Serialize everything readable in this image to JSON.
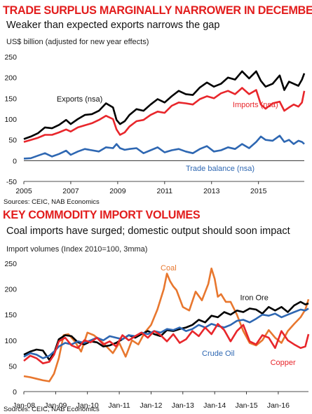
{
  "chart_data": [
    {
      "type": "line",
      "title": "TRADE SURPLUS MARGINALLY NARROWER IN DECEMBER",
      "subtitle": "Weaker than expected exports narrows the gap",
      "ylabel": "US$ billion (adjusted for new year effects)",
      "source": "Sources: CEIC, NAB Economics",
      "xlim": [
        2005.0,
        2016.95
      ],
      "ylim": [
        -50,
        250
      ],
      "x_ticks": [
        2005,
        2007,
        2009,
        2011,
        2013,
        2015
      ],
      "y_ticks": [
        -50,
        0,
        50,
        100,
        150,
        200,
        250
      ],
      "grid": false,
      "legend": "inline labels",
      "annotations": [
        "Exports (nsa)",
        "Imports (nsa)",
        "Trade balance (nsa)"
      ],
      "series": [
        {
          "name": "Exports (nsa)",
          "color": "#000000",
          "x": [
            2005.0,
            2005.3,
            2005.6,
            2005.9,
            2006.2,
            2006.5,
            2006.8,
            2007.0,
            2007.3,
            2007.6,
            2007.9,
            2008.2,
            2008.5,
            2008.8,
            2008.95,
            2009.1,
            2009.3,
            2009.5,
            2009.8,
            2010.1,
            2010.4,
            2010.7,
            2011.0,
            2011.3,
            2011.6,
            2011.9,
            2012.2,
            2012.5,
            2012.8,
            2013.1,
            2013.4,
            2013.7,
            2014.0,
            2014.3,
            2014.6,
            2014.9,
            2015.1,
            2015.3,
            2015.6,
            2015.9,
            2016.1,
            2016.3,
            2016.5,
            2016.7,
            2016.85,
            2016.95
          ],
          "values": [
            52,
            58,
            66,
            80,
            78,
            86,
            98,
            88,
            100,
            110,
            112,
            120,
            138,
            128,
            98,
            88,
            95,
            110,
            124,
            120,
            135,
            148,
            140,
            155,
            168,
            160,
            158,
            176,
            188,
            178,
            185,
            200,
            195,
            215,
            198,
            215,
            192,
            178,
            185,
            205,
            170,
            190,
            185,
            180,
            195,
            210
          ]
        },
        {
          "name": "Imports (nsa)",
          "color": "#e8262b",
          "x": [
            2005.0,
            2005.3,
            2005.6,
            2005.9,
            2006.2,
            2006.5,
            2006.8,
            2007.0,
            2007.3,
            2007.6,
            2007.9,
            2008.2,
            2008.5,
            2008.8,
            2008.95,
            2009.1,
            2009.3,
            2009.5,
            2009.8,
            2010.1,
            2010.4,
            2010.7,
            2011.0,
            2011.3,
            2011.6,
            2011.9,
            2012.2,
            2012.5,
            2012.8,
            2013.1,
            2013.4,
            2013.7,
            2014.0,
            2014.3,
            2014.6,
            2014.9,
            2015.1,
            2015.3,
            2015.6,
            2015.9,
            2016.1,
            2016.3,
            2016.5,
            2016.7,
            2016.85,
            2016.95
          ],
          "values": [
            45,
            50,
            55,
            62,
            62,
            68,
            75,
            70,
            80,
            85,
            90,
            98,
            108,
            100,
            75,
            62,
            68,
            82,
            95,
            98,
            110,
            118,
            115,
            132,
            140,
            138,
            135,
            148,
            155,
            150,
            162,
            168,
            160,
            175,
            160,
            170,
            135,
            125,
            138,
            142,
            120,
            128,
            135,
            130,
            140,
            168
          ]
        },
        {
          "name": "Trade balance (nsa)",
          "color": "#2e67b2",
          "x": [
            2005.0,
            2005.3,
            2005.6,
            2005.9,
            2006.2,
            2006.5,
            2006.8,
            2007.0,
            2007.3,
            2007.6,
            2007.9,
            2008.2,
            2008.5,
            2008.8,
            2008.95,
            2009.1,
            2009.3,
            2009.5,
            2009.8,
            2010.1,
            2010.4,
            2010.7,
            2011.0,
            2011.3,
            2011.6,
            2011.9,
            2012.2,
            2012.5,
            2012.8,
            2013.1,
            2013.4,
            2013.7,
            2014.0,
            2014.3,
            2014.6,
            2014.9,
            2015.1,
            2015.3,
            2015.6,
            2015.9,
            2016.1,
            2016.3,
            2016.5,
            2016.7,
            2016.85,
            2016.95
          ],
          "values": [
            5,
            6,
            12,
            18,
            10,
            16,
            24,
            14,
            22,
            28,
            25,
            22,
            32,
            30,
            40,
            30,
            26,
            28,
            30,
            18,
            25,
            32,
            20,
            25,
            28,
            22,
            18,
            28,
            35,
            22,
            25,
            32,
            28,
            40,
            30,
            45,
            58,
            50,
            48,
            60,
            45,
            50,
            40,
            48,
            45,
            40
          ]
        }
      ]
    },
    {
      "type": "line",
      "title": "KEY COMMODITY IMPORT VOLUMES",
      "subtitle": "Coal imports have surged; domestic output should soon impact",
      "ylabel": "Import volumes (Index 2010=100, 3mma)",
      "source": "Sources: CEIC, NAB Economics",
      "xlim": [
        2008.0,
        2016.95
      ],
      "ylim": [
        0,
        250
      ],
      "x_ticks": [
        2008,
        2009,
        2010,
        2011,
        2012,
        2013,
        2014,
        2015,
        2016
      ],
      "x_tick_labels": [
        "Jan-08",
        "Jan-09",
        "Jan-10",
        "Jan-11",
        "Jan-12",
        "Jan-13",
        "Jan-14",
        "Jan-15",
        "Jan-16"
      ],
      "y_ticks": [
        0,
        50,
        100,
        150,
        200,
        250
      ],
      "grid": false,
      "legend": "inline labels",
      "annotations": [
        "Coal",
        "Iron Ore",
        "Crude Oil",
        "Copper"
      ],
      "series": [
        {
          "name": "Coal",
          "color": "#e8772e",
          "x": [
            2008.0,
            2008.2,
            2008.4,
            2008.6,
            2008.8,
            2008.95,
            2009.1,
            2009.25,
            2009.4,
            2009.6,
            2009.8,
            2010.0,
            2010.2,
            2010.4,
            2010.6,
            2010.8,
            2011.0,
            2011.2,
            2011.4,
            2011.6,
            2011.8,
            2012.0,
            2012.2,
            2012.4,
            2012.5,
            2012.6,
            2012.7,
            2012.8,
            2013.0,
            2013.2,
            2013.4,
            2013.6,
            2013.8,
            2013.9,
            2014.0,
            2014.1,
            2014.2,
            2014.35,
            2014.5,
            2014.7,
            2014.9,
            2015.1,
            2015.3,
            2015.5,
            2015.7,
            2015.9,
            2016.1,
            2016.3,
            2016.5,
            2016.7,
            2016.85,
            2016.95
          ],
          "values": [
            30,
            28,
            25,
            22,
            20,
            35,
            65,
            110,
            112,
            98,
            78,
            115,
            110,
            100,
            88,
            75,
            95,
            68,
            100,
            92,
            115,
            130,
            160,
            200,
            230,
            215,
            205,
            198,
            165,
            158,
            195,
            178,
            210,
            240,
            220,
            185,
            190,
            175,
            175,
            150,
            118,
            95,
            90,
            100,
            120,
            105,
            95,
            118,
            132,
            145,
            160,
            180
          ]
        },
        {
          "name": "Iron Ore",
          "color": "#000000",
          "x": [
            2008.0,
            2008.2,
            2008.4,
            2008.6,
            2008.8,
            2008.95,
            2009.1,
            2009.3,
            2009.5,
            2009.7,
            2009.9,
            2010.1,
            2010.3,
            2010.5,
            2010.7,
            2010.9,
            2011.1,
            2011.3,
            2011.5,
            2011.7,
            2011.9,
            2012.1,
            2012.3,
            2012.5,
            2012.7,
            2012.9,
            2013.1,
            2013.3,
            2013.5,
            2013.7,
            2013.9,
            2014.1,
            2014.3,
            2014.5,
            2014.7,
            2014.9,
            2015.1,
            2015.3,
            2015.5,
            2015.7,
            2015.9,
            2016.1,
            2016.3,
            2016.5,
            2016.7,
            2016.85,
            2016.95
          ],
          "values": [
            72,
            78,
            82,
            80,
            62,
            75,
            102,
            110,
            108,
            96,
            92,
            98,
            96,
            88,
            90,
            95,
            102,
            110,
            105,
            112,
            118,
            112,
            108,
            120,
            118,
            122,
            125,
            130,
            140,
            135,
            148,
            145,
            155,
            150,
            158,
            155,
            162,
            160,
            152,
            165,
            158,
            165,
            155,
            168,
            175,
            170,
            172
          ]
        },
        {
          "name": "Crude Oil",
          "color": "#2e67b2",
          "x": [
            2008.0,
            2008.2,
            2008.4,
            2008.6,
            2008.8,
            2008.95,
            2009.1,
            2009.3,
            2009.5,
            2009.7,
            2009.9,
            2010.1,
            2010.3,
            2010.5,
            2010.7,
            2010.9,
            2011.1,
            2011.3,
            2011.5,
            2011.7,
            2011.9,
            2012.1,
            2012.3,
            2012.5,
            2012.7,
            2012.9,
            2013.1,
            2013.3,
            2013.5,
            2013.7,
            2013.9,
            2014.1,
            2014.3,
            2014.5,
            2014.7,
            2014.9,
            2015.1,
            2015.3,
            2015.5,
            2015.7,
            2015.9,
            2016.1,
            2016.3,
            2016.5,
            2016.7,
            2016.85,
            2016.95
          ],
          "values": [
            68,
            75,
            72,
            65,
            70,
            78,
            88,
            95,
            92,
            98,
            95,
            100,
            105,
            100,
            108,
            105,
            102,
            110,
            108,
            115,
            112,
            118,
            115,
            122,
            120,
            125,
            118,
            122,
            130,
            125,
            132,
            128,
            125,
            130,
            138,
            140,
            135,
            142,
            150,
            148,
            152,
            145,
            150,
            155,
            160,
            158,
            162
          ]
        },
        {
          "name": "Copper",
          "color": "#e8262b",
          "x": [
            2008.0,
            2008.2,
            2008.4,
            2008.6,
            2008.8,
            2008.95,
            2009.1,
            2009.3,
            2009.5,
            2009.7,
            2009.9,
            2010.1,
            2010.3,
            2010.5,
            2010.7,
            2010.9,
            2011.1,
            2011.3,
            2011.5,
            2011.7,
            2011.9,
            2012.1,
            2012.3,
            2012.5,
            2012.7,
            2012.9,
            2013.1,
            2013.3,
            2013.5,
            2013.7,
            2013.9,
            2014.1,
            2014.3,
            2014.5,
            2014.7,
            2014.9,
            2015.1,
            2015.3,
            2015.5,
            2015.7,
            2015.9,
            2016.1,
            2016.3,
            2016.5,
            2016.7,
            2016.85,
            2016.95
          ],
          "values": [
            60,
            70,
            65,
            55,
            58,
            72,
            98,
            105,
            90,
            85,
            100,
            96,
            105,
            92,
            98,
            88,
            110,
            100,
            108,
            115,
            105,
            118,
            110,
            98,
            112,
            95,
            102,
            118,
            108,
            125,
            112,
            132,
            120,
            98,
            118,
            130,
            98,
            92,
            110,
            105,
            85,
            118,
            100,
            92,
            85,
            88,
            112
          ]
        }
      ]
    }
  ]
}
